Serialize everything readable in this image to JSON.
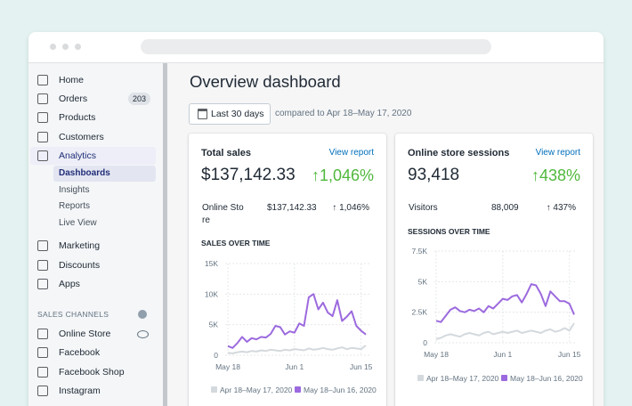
{
  "nav": {
    "items": [
      {
        "label": "Home"
      },
      {
        "label": "Orders",
        "badge": "203"
      },
      {
        "label": "Products"
      },
      {
        "label": "Customers"
      },
      {
        "label": "Analytics",
        "sub": [
          "Dashboards",
          "Insights",
          "Reports",
          "Live View"
        ]
      },
      {
        "label": "Marketing"
      },
      {
        "label": "Discounts"
      },
      {
        "label": "Apps"
      }
    ]
  },
  "sales_channels": {
    "heading": "SALES CHANNELS",
    "items": [
      "Online Store",
      "Facebook",
      "Facebook Shop",
      "Instagram"
    ]
  },
  "page": {
    "title": "Overview dashboard",
    "date_button": "Last 30 days",
    "compare": "compared to Apr 18–May 17, 2020"
  },
  "cards": [
    {
      "title": "Total sales",
      "link": "View report",
      "total": "$137,142.33",
      "change": "↑1,046%",
      "row": {
        "label": "Online Store",
        "value": "$137,142.33",
        "change": "↑ 1,046%"
      },
      "chart": {
        "type": "line",
        "title": "SALES OVER TIME",
        "categories": [
          "May 18",
          null,
          null,
          null,
          null,
          null,
          null,
          null,
          null,
          null,
          null,
          null,
          null,
          null,
          "Jun 1",
          null,
          null,
          null,
          null,
          null,
          null,
          null,
          null,
          null,
          null,
          null,
          null,
          null,
          "Jun 15",
          null
        ],
        "ylim": [
          0,
          15000
        ],
        "yticks": [
          {
            "value": 0,
            "label": "0"
          },
          {
            "value": 5000,
            "label": "5K"
          },
          {
            "value": 10000,
            "label": "10K"
          },
          {
            "value": 15000,
            "label": "15K"
          }
        ],
        "series": [
          {
            "name": "Apr 18–May 17, 2020",
            "color": "#d4d9dd",
            "values": [
              400,
              300,
              500,
              600,
              500,
              700,
              600,
              800,
              700,
              900,
              800,
              700,
              900,
              800,
              1000,
              900,
              800,
              1100,
              900,
              1000,
              1200,
              1000,
              900,
              1100,
              1300,
              1000,
              1200,
              1100,
              1000,
              1600
            ]
          },
          {
            "name": "May 18–Jun 16, 2020",
            "color": "#9c6ade",
            "values": [
              1500,
              1200,
              2000,
              3000,
              2200,
              2800,
              2600,
              3000,
              2900,
              3500,
              4800,
              4600,
              3400,
              3900,
              3700,
              5200,
              4800,
              9500,
              10000,
              7500,
              8600,
              7000,
              6400,
              9000,
              5600,
              6300,
              7200,
              4800,
              4000,
              3400
            ]
          }
        ]
      }
    },
    {
      "title": "Online store sessions",
      "link": "View report",
      "total": "93,418",
      "change": "↑438%",
      "row": {
        "label": "Visitors",
        "value": "88,009",
        "change": "↑ 437%"
      },
      "chart": {
        "type": "line",
        "title": "SESSIONS OVER TIME",
        "categories": [
          "May 18",
          null,
          null,
          null,
          null,
          null,
          null,
          null,
          null,
          null,
          null,
          null,
          null,
          null,
          "Jun 1",
          null,
          null,
          null,
          null,
          null,
          null,
          null,
          null,
          null,
          null,
          null,
          null,
          null,
          "Jun 15",
          null
        ],
        "ylim": [
          0,
          7500
        ],
        "yticks": [
          {
            "value": 0,
            "label": "0"
          },
          {
            "value": 2500,
            "label": "2.5K"
          },
          {
            "value": 5000,
            "label": "5K"
          },
          {
            "value": 7500,
            "label": "7.5K"
          }
        ],
        "series": [
          {
            "name": "Apr 18–May 17, 2020",
            "color": "#d4d9dd",
            "values": [
              300,
              400,
              600,
              700,
              600,
              500,
              700,
              800,
              700,
              600,
              800,
              900,
              700,
              800,
              900,
              800,
              900,
              1000,
              800,
              900,
              1000,
              900,
              800,
              1000,
              1100,
              900,
              1000,
              1200,
              1000,
              1600
            ]
          },
          {
            "name": "May 18–Jun 16, 2020",
            "color": "#9c6ade",
            "values": [
              1800,
              1700,
              2200,
              2700,
              2900,
              2600,
              2500,
              2700,
              2600,
              2800,
              2500,
              3000,
              2800,
              3200,
              3600,
              3500,
              3800,
              3900,
              3300,
              4000,
              4800,
              4700,
              4000,
              3000,
              4200,
              3800,
              3400,
              3400,
              3200,
              2300
            ]
          }
        ]
      }
    }
  ]
}
